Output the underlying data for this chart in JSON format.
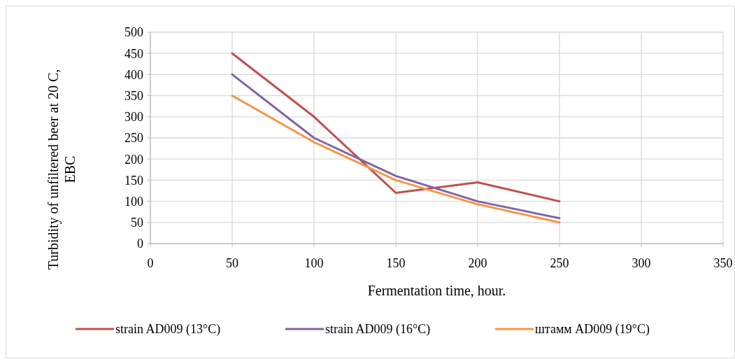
{
  "chart_data": {
    "type": "line",
    "xlabel": "Fermentation time, hour.",
    "ylabel": "Turbidity of unfiltered beer at 20 C, EBC",
    "x": [
      50,
      100,
      150,
      200,
      250
    ],
    "series": [
      {
        "name": "strain AD009 (13°C)",
        "color": "#c0504d",
        "values": [
          450,
          300,
          120,
          145,
          100
        ]
      },
      {
        "name": "strain AD009 (16°C)",
        "color": "#8064a2",
        "values": [
          400,
          250,
          160,
          100,
          60
        ]
      },
      {
        "name": "штамм AD009 (19°C)",
        "color": "#f79646",
        "values": [
          350,
          240,
          150,
          93,
          50
        ]
      }
    ],
    "xlim": [
      0,
      350
    ],
    "xticks": [
      0,
      50,
      100,
      150,
      200,
      250,
      300,
      350
    ],
    "ylim": [
      0,
      500
    ],
    "yticks": [
      0,
      50,
      100,
      150,
      200,
      250,
      300,
      350,
      400,
      450,
      500
    ],
    "grid": true,
    "legend": "bottom",
    "marker": "none",
    "line_style": "solid"
  }
}
